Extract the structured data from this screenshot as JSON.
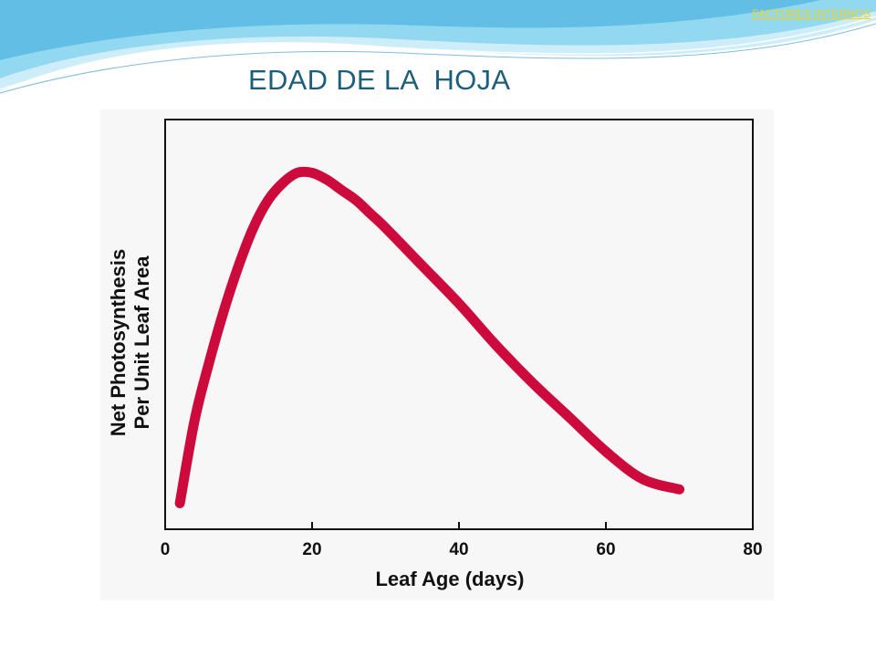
{
  "slide": {
    "top_link": "FACTORES INTERNOS",
    "title": "EDAD DE LA  HOJA"
  },
  "colors": {
    "title": "#1d5f7a",
    "link": "#f2d21a",
    "curve": "#cc0a3c",
    "wave_light": "#cdeef9",
    "wave_mid": "#7fd0ee",
    "wave_dark": "#3aa9da"
  },
  "chart_data": {
    "type": "line",
    "xlabel": "Leaf Age (days)",
    "ylabel_lines": [
      "Net Photosynthesis",
      "Per Unit Leaf Area"
    ],
    "xlim": [
      0,
      80
    ],
    "ylim": [
      0,
      1
    ],
    "x_ticks": [
      0,
      20,
      40,
      60,
      80
    ],
    "y_ticks_labeled": false,
    "grid": false,
    "series": [
      {
        "points": [
          [
            2,
            0.04
          ],
          [
            4,
            0.28
          ],
          [
            6,
            0.45
          ],
          [
            8,
            0.6
          ],
          [
            10,
            0.73
          ],
          [
            12,
            0.84
          ],
          [
            14,
            0.92
          ],
          [
            16,
            0.97
          ],
          [
            18,
            1.0
          ],
          [
            20,
            1.0
          ],
          [
            22,
            0.98
          ],
          [
            24,
            0.95
          ],
          [
            26,
            0.92
          ],
          [
            28,
            0.88
          ],
          [
            30,
            0.84
          ],
          [
            35,
            0.73
          ],
          [
            40,
            0.62
          ],
          [
            45,
            0.5
          ],
          [
            50,
            0.39
          ],
          [
            55,
            0.29
          ],
          [
            60,
            0.19
          ],
          [
            65,
            0.11
          ],
          [
            70,
            0.08
          ]
        ]
      }
    ]
  }
}
